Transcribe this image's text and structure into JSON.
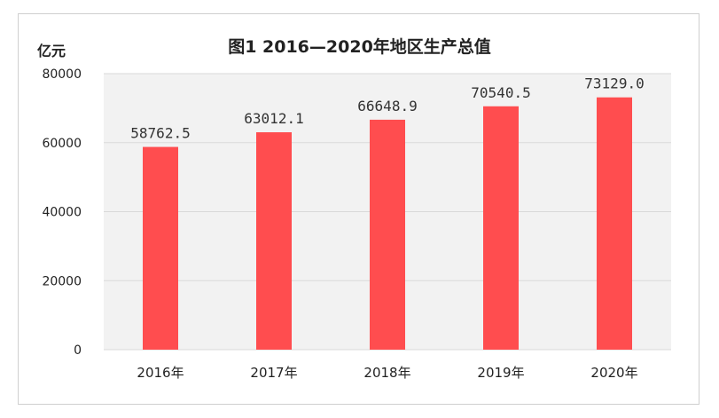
{
  "chart_data": {
    "type": "bar",
    "title": "图1   2016—2020年地区生产总值",
    "ylabel": "亿元",
    "xlabel": "",
    "categories": [
      "2016年",
      "2017年",
      "2018年",
      "2019年",
      "2020年"
    ],
    "values": [
      58762.5,
      63012.1,
      66648.9,
      70540.5,
      73129.0
    ],
    "data_labels": [
      "58762.5",
      "63012.1",
      "66648.9",
      "70540.5",
      "73129.0"
    ],
    "ylim": [
      0,
      80000
    ],
    "yticks": [
      0,
      20000,
      40000,
      60000,
      80000
    ],
    "ytick_labels": [
      "0",
      "20000",
      "40000",
      "60000",
      "80000"
    ],
    "grid": true,
    "legend": "none",
    "colors": {
      "bar": "#ff4d4f",
      "plot_bg": "#f2f2f2",
      "grid": "#d9d9d9"
    }
  }
}
